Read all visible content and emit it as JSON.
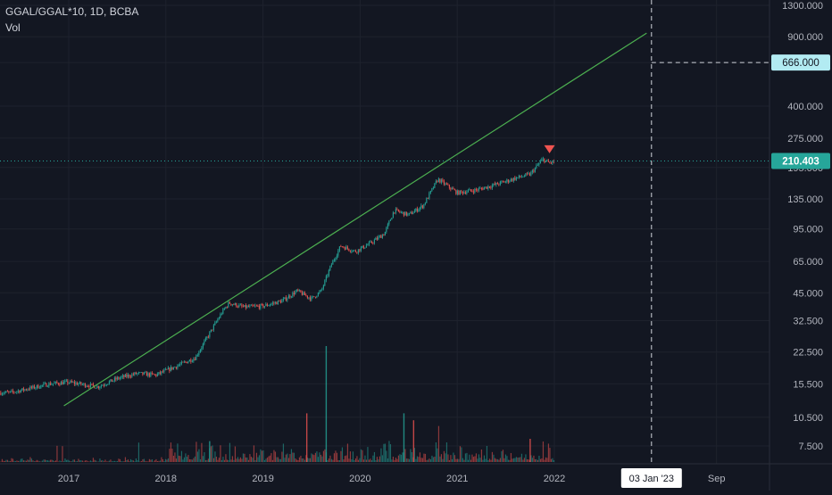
{
  "header": {
    "symbol_line": "GGAL/GGAL*10, 1D, BCBA",
    "volume_label": "Vol"
  },
  "colors": {
    "background": "#131722",
    "grid": "#1e222d",
    "text": "#b2b5be",
    "up": "#26a69a",
    "down": "#ef5350",
    "trendline": "#4caf50",
    "price_line": "#26a69a",
    "target_label_bg": "#b2ebf2"
  },
  "chart_data": {
    "type": "candlestick",
    "scale": "log",
    "y_ticks": [
      "1300.000",
      "900.000",
      "666.000",
      "400.000",
      "275.000",
      "195.000",
      "135.000",
      "95.000",
      "65.000",
      "45.000",
      "32.500",
      "22.500",
      "15.500",
      "10.500",
      "7.500"
    ],
    "x_ticks": [
      "2017",
      "2018",
      "2019",
      "2020",
      "2021",
      "2022",
      "Sep"
    ],
    "current_price": {
      "value": 210.403,
      "label": "210.403"
    },
    "target_price": {
      "value": 666.0,
      "label": "666.000"
    },
    "crosshair_date": "03 Jan '23",
    "series_points": [
      {
        "date": "2016.4",
        "value": 14.0
      },
      {
        "date": "2016.8",
        "value": 15.5
      },
      {
        "date": "2017.0",
        "value": 15.8
      },
      {
        "date": "2017.3",
        "value": 15.0
      },
      {
        "date": "2017.5",
        "value": 16.5
      },
      {
        "date": "2017.7",
        "value": 17.5
      },
      {
        "date": "2017.9",
        "value": 17.2
      },
      {
        "date": "2018.1",
        "value": 19.0
      },
      {
        "date": "2018.3",
        "value": 21.0
      },
      {
        "date": "2018.45",
        "value": 28.0
      },
      {
        "date": "2018.58",
        "value": 36.0
      },
      {
        "date": "2018.65",
        "value": 40.0
      },
      {
        "date": "2018.8",
        "value": 38.0
      },
      {
        "date": "2019.0",
        "value": 38.5
      },
      {
        "date": "2019.2",
        "value": 41.0
      },
      {
        "date": "2019.35",
        "value": 46.0
      },
      {
        "date": "2019.5",
        "value": 42.0
      },
      {
        "date": "2019.6",
        "value": 46.0
      },
      {
        "date": "2019.7",
        "value": 62.0
      },
      {
        "date": "2019.8",
        "value": 78.0
      },
      {
        "date": "2019.95",
        "value": 73.0
      },
      {
        "date": "2020.1",
        "value": 80.0
      },
      {
        "date": "2020.25",
        "value": 90.0
      },
      {
        "date": "2020.35",
        "value": 118.0
      },
      {
        "date": "2020.5",
        "value": 112.0
      },
      {
        "date": "2020.65",
        "value": 125.0
      },
      {
        "date": "2020.8",
        "value": 170.0
      },
      {
        "date": "2021.0",
        "value": 145.0
      },
      {
        "date": "2021.2",
        "value": 150.0
      },
      {
        "date": "2021.4",
        "value": 160.0
      },
      {
        "date": "2021.6",
        "value": 172.0
      },
      {
        "date": "2021.75",
        "value": 180.0
      },
      {
        "date": "2021.88",
        "value": 215.0
      },
      {
        "date": "2021.95",
        "value": 205.0
      },
      {
        "date": "2022.0",
        "value": 210.4
      }
    ],
    "trendline": {
      "start": {
        "date": "2016.95",
        "value": 12.0
      },
      "end": {
        "date": "2022.95",
        "value": 940.0
      }
    },
    "volume_spikes": [
      {
        "date": "2019.65",
        "value": 1.0
      },
      {
        "date": "2019.45",
        "value": 0.42
      },
      {
        "date": "2020.45",
        "value": 0.42
      },
      {
        "date": "2020.55",
        "value": 0.36
      },
      {
        "date": "2018.45",
        "value": 0.18
      },
      {
        "date": "2021.75",
        "value": 0.2
      }
    ]
  }
}
